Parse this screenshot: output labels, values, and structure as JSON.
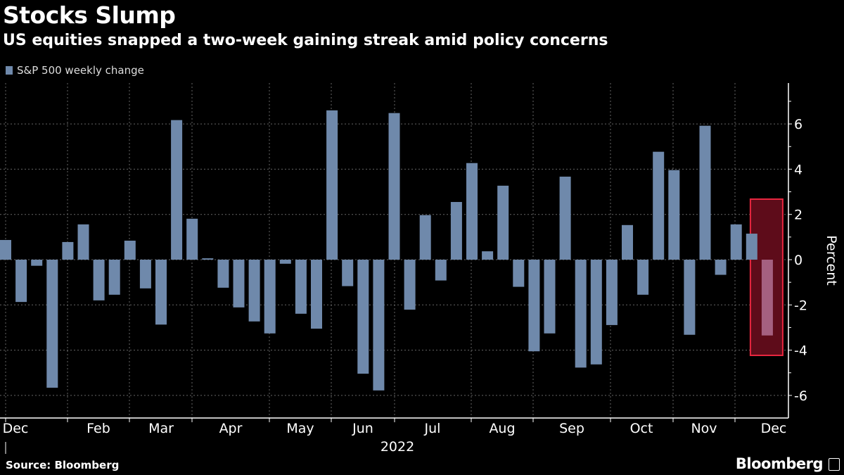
{
  "header": {
    "title": "Stocks Slump",
    "subtitle": "US equities snapped a two-week gaining streak amid policy concerns"
  },
  "footer": {
    "source": "Source: Bloomberg",
    "logo": "Bloomberg"
  },
  "chart_data": {
    "type": "bar",
    "title": "Stocks Slump",
    "subtitle": "US equities snapped a two-week gaining streak amid policy concerns",
    "series": [
      {
        "name": "S&P 500 weekly change",
        "color": "#6f89ab",
        "values": [
          0.87,
          -1.87,
          -0.27,
          -5.66,
          0.78,
          1.56,
          -1.8,
          -1.55,
          0.84,
          -1.27,
          -2.87,
          6.17,
          1.81,
          0.06,
          -1.24,
          -2.11,
          -2.73,
          -3.26,
          -0.18,
          -2.39,
          -3.05,
          6.6,
          -1.17,
          -5.04,
          -5.78,
          6.48,
          -2.21,
          1.97,
          -0.92,
          2.55,
          4.27,
          0.37,
          3.27,
          -1.2,
          -4.05,
          -3.26,
          3.67,
          -4.77,
          -4.63,
          -2.89,
          1.53,
          -1.55,
          4.77,
          3.96,
          -3.32,
          5.92,
          -0.67,
          1.56,
          1.15,
          -3.35
        ]
      }
    ],
    "highlight": {
      "index": 49,
      "bar_color": "#a56080",
      "box_fill": "#5e0c1a",
      "box_stroke": "#e8263f"
    },
    "x_tick_labels": [
      "Dec",
      "Feb",
      "Mar",
      "Apr",
      "May",
      "Jun",
      "Jul",
      "Aug",
      "Sep",
      "Oct",
      "Nov",
      "Dec"
    ],
    "x_year_label": "2022",
    "ylabel": "Percent",
    "yticks": [
      -6,
      -4,
      -2,
      0,
      2,
      4,
      6
    ],
    "ytick_labels": [
      "-6",
      "-4",
      "-2",
      "0",
      "2",
      "4",
      "6"
    ],
    "ylim": [
      -7,
      7.8
    ],
    "grid": true,
    "legend": "top-left",
    "y_axis_side": "right"
  }
}
